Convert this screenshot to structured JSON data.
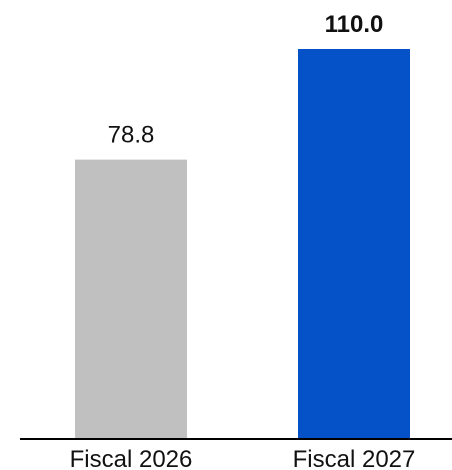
{
  "chart_data": {
    "type": "bar",
    "categories": [
      "Fiscal 2026",
      "Fiscal 2027"
    ],
    "values": [
      78.8,
      110.0
    ],
    "value_labels": [
      "78.8",
      "110.0"
    ],
    "bar_colors": [
      "#c0c0c0",
      "#0451c8"
    ],
    "value_label_bold": [
      false,
      true
    ],
    "title": "",
    "xlabel": "",
    "ylabel": "",
    "ylim": [
      0,
      110.0
    ],
    "grid": false,
    "legend": "none"
  }
}
